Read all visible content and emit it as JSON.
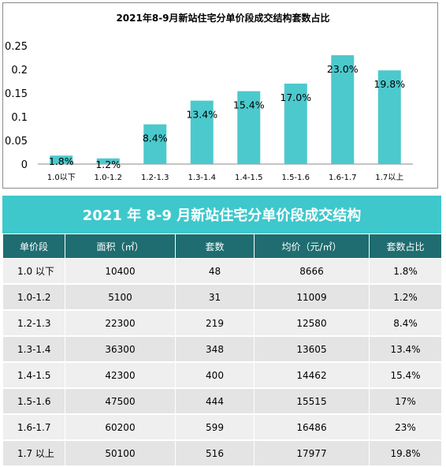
{
  "chart_data": {
    "type": "bar",
    "title": "2021年8-9月新站住宅分单价段成交结构套数占比",
    "categories": [
      "1.0以下",
      "1.0-1.2",
      "1.2-1.3",
      "1.3-1.4",
      "1.4-1.5",
      "1.5-1.6",
      "1.6-1.7",
      "1.7以上"
    ],
    "values": [
      0.018,
      0.012,
      0.084,
      0.134,
      0.154,
      0.17,
      0.23,
      0.198
    ],
    "data_labels": [
      "1.8%",
      "1.2%",
      "8.4%",
      "13.4%",
      "15.4%",
      "17.0%",
      "23.0%",
      "19.8%"
    ],
    "yticks": [
      "0",
      "0.05",
      "0.1",
      "0.15",
      "0.2",
      "0.25"
    ],
    "ylim": [
      0,
      0.25
    ],
    "grid": false,
    "bar_color": "#4cc9cd"
  },
  "table": {
    "title": "2021 年 8-9 月新站住宅分单价段成交结构",
    "headers": [
      "单价段",
      "面积（㎡）",
      "套数",
      "均价（元/㎡）",
      "套数占比"
    ],
    "rows": [
      [
        "1.0 以下",
        "10400",
        "48",
        "8666",
        "1.8%"
      ],
      [
        "1.0-1.2",
        "5100",
        "31",
        "11009",
        "1.2%"
      ],
      [
        "1.2-1.3",
        "22300",
        "219",
        "12580",
        "8.4%"
      ],
      [
        "1.3-1.4",
        "36300",
        "348",
        "13605",
        "13.4%"
      ],
      [
        "1.4-1.5",
        "42300",
        "400",
        "14462",
        "15.4%"
      ],
      [
        "1.5-1.6",
        "47500",
        "444",
        "15515",
        "17%"
      ],
      [
        "1.6-1.7",
        "60200",
        "599",
        "16486",
        "23%"
      ],
      [
        "1.7 以上",
        "50100",
        "516",
        "17977",
        "19.8%"
      ]
    ],
    "header_color": "#1f6d70",
    "banner_color": "#3ec8cc"
  }
}
